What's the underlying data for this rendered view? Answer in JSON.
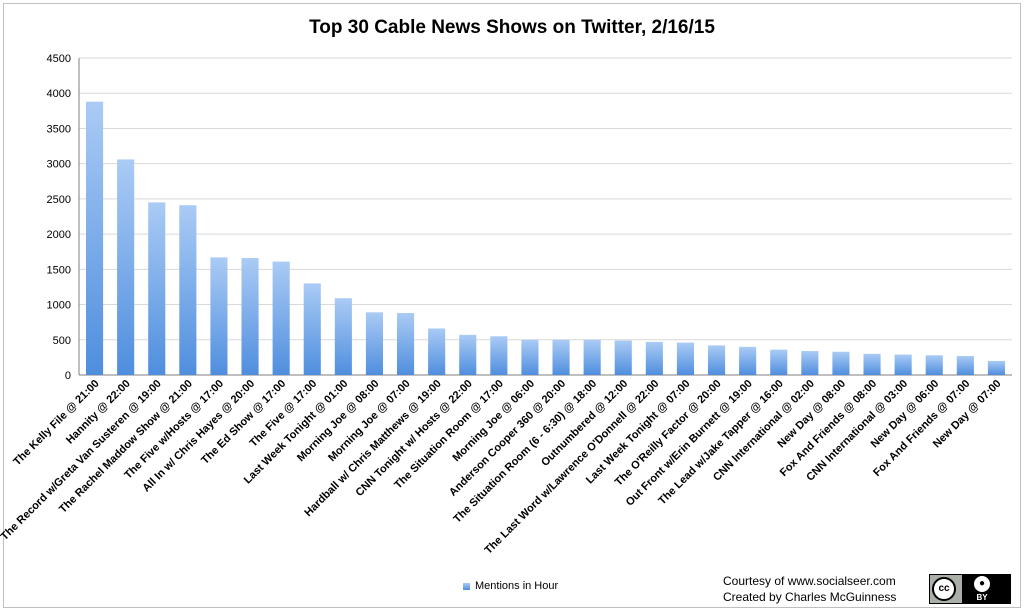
{
  "chart_data": {
    "type": "bar",
    "title": "Top 30 Cable News Shows on Twitter, 2/16/15",
    "xlabel": "",
    "ylabel": "",
    "ylim": [
      0,
      4500
    ],
    "yticks": [
      0,
      500,
      1000,
      1500,
      2000,
      2500,
      3000,
      3500,
      4000,
      4500
    ],
    "grid": true,
    "legend_position": "bottom",
    "categories": [
      "The Kelly File @ 21:00",
      "Hannity @ 22:00",
      "The Record w/Greta Van Susteren @ 19:00",
      "The Rachel Maddow Show @ 21:00",
      "The Five w/Hosts @ 17:00",
      "All In w/ Chris Hayes @ 20:00",
      "The Ed Show @ 17:00",
      "The Five @ 17:00",
      "Last Week Tonight @ 01:00",
      "Morning Joe @ 08:00",
      "Morning Joe @ 07:00",
      "Hardball w/ Chris Matthews @ 19:00",
      "CNN Tonight w/ Hosts @ 22:00",
      "The Situation Room @ 17:00",
      "Morning Joe @ 06:00",
      "Anderson Cooper 360 @ 20:00",
      "The Situation Room (6 - 6:30) @ 18:00",
      "Outnumbered @ 12:00",
      "The Last Word w/Lawrence O'Donnell @ 22:00",
      "Last Week Tonight @ 07:00",
      "The O'Reilly Factor @ 20:00",
      "Out Front w/Erin Burnett @ 19:00",
      "The Lead w/Jake Tapper @ 16:00",
      "CNN International @ 02:00",
      "New Day @ 08:00",
      "Fox And Friends @ 08:00",
      "CNN International @ 03:00",
      "New Day @ 06:00",
      "Fox And Friends @ 07:00",
      "New Day @ 07:00"
    ],
    "series": [
      {
        "name": "Mentions in Hour",
        "values": [
          3880,
          3060,
          2450,
          2410,
          1670,
          1660,
          1610,
          1300,
          1090,
          890,
          880,
          660,
          570,
          550,
          500,
          500,
          500,
          490,
          470,
          460,
          420,
          400,
          360,
          340,
          330,
          300,
          290,
          280,
          270,
          200
        ]
      }
    ],
    "colors": {
      "bar_top": "#aacbf5",
      "bar_bottom": "#4f8ede",
      "grid": "#d9d9d9",
      "axis": "#7f7f7f"
    }
  },
  "credits": {
    "line1": "Courtesy of www.socialseer.com",
    "line2": "Created by Charles McGuinness"
  },
  "license_badge": {
    "icon": "creative-commons-icon",
    "by_icon": "attribution-person-icon",
    "symbol": "cc",
    "by_label": "BY"
  }
}
